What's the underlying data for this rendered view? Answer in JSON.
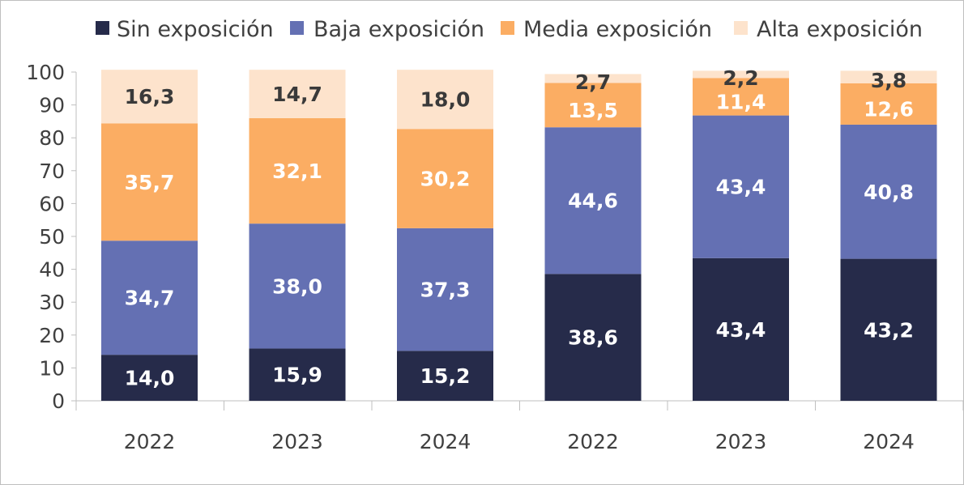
{
  "chart_data": {
    "type": "bar",
    "stacked": true,
    "categories": [
      "2022",
      "2023",
      "2024",
      "2022",
      "2023",
      "2024"
    ],
    "series": [
      {
        "name": "Sin exposición",
        "color": "#262b4a",
        "label_color": "#ffffff",
        "values": [
          14.0,
          15.9,
          15.2,
          38.6,
          43.4,
          43.2
        ],
        "labels": [
          "14,0",
          "15,9",
          "15,2",
          "38,6",
          "43,4",
          "43,2"
        ]
      },
      {
        "name": "Baja exposición",
        "color": "#6470b3",
        "label_color": "#ffffff",
        "values": [
          34.7,
          38.0,
          37.3,
          44.6,
          43.4,
          40.8
        ],
        "labels": [
          "34,7",
          "38,0",
          "37,3",
          "44,6",
          "43,4",
          "40,8"
        ]
      },
      {
        "name": "Media exposición",
        "color": "#fbad63",
        "label_color": "#ffffff",
        "values": [
          35.7,
          32.1,
          30.2,
          13.5,
          11.4,
          12.6
        ],
        "labels": [
          "35,7",
          "32,1",
          "30,2",
          "13,5",
          "11,4",
          "12,6"
        ]
      },
      {
        "name": "Alta exposición",
        "color": "#fde3cc",
        "label_color": "#3a3a3a",
        "values": [
          16.3,
          14.7,
          18.0,
          2.7,
          2.2,
          3.8
        ],
        "labels": [
          "16,3",
          "14,7",
          "18,0",
          "2,7",
          "2,2",
          "3,8"
        ]
      }
    ],
    "ylim": [
      0,
      100
    ],
    "yticks": [
      "0",
      "10",
      "20",
      "30",
      "40",
      "50",
      "60",
      "70",
      "80",
      "90",
      "100"
    ],
    "xlabel": "",
    "ylabel": "",
    "grid": false,
    "legend_position": "top"
  }
}
